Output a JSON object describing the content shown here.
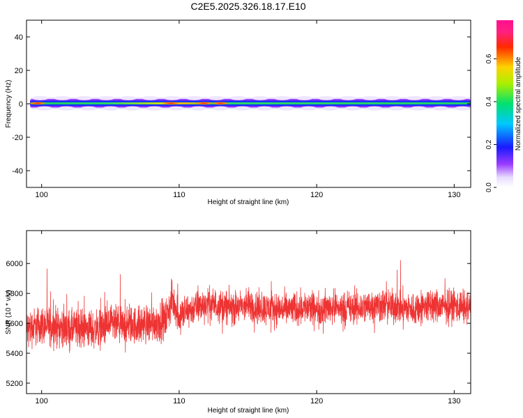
{
  "figure_title": "C2E5.2025.326.18.17.E10",
  "chart_data": [
    {
      "type": "heatmap",
      "title": "",
      "xlabel": "Height of straight line (km)",
      "ylabel": "Frequency (Hz)",
      "xlim": [
        98.9,
        131.2
      ],
      "ylim": [
        -50,
        50
      ],
      "xticks": [
        100,
        110,
        120,
        130
      ],
      "yticks": [
        -40,
        -20,
        0,
        20,
        40
      ],
      "band": {
        "center_hz": 0.3,
        "half_width_hz": [
          3.5,
          2.5,
          1.5,
          0.6
        ]
      },
      "colorbar": {
        "label": "Normalized spectral amplitude",
        "range": [
          0,
          0.78
        ],
        "ticks": [
          0.0,
          0.2,
          0.4,
          0.6
        ],
        "colormap": "rainbow (white-purple-blue-cyan-green-yellow-red-magenta)"
      },
      "hotspots": [
        {
          "x_km": 99.7,
          "amplitude": 0.68
        },
        {
          "x_km": 109.4,
          "amplitude": 0.66
        },
        {
          "x_km": 111.8,
          "amplitude": 0.7
        },
        {
          "x_km": 113.0,
          "amplitude": 0.65
        }
      ],
      "grid": false
    },
    {
      "type": "line",
      "title": "",
      "xlabel": "Height of straight line (km)",
      "ylabel": "SNR (10 * v/v)",
      "xlim": [
        98.9,
        131.2
      ],
      "ylim": [
        5130,
        6220
      ],
      "xticks": [
        100,
        110,
        120,
        130
      ],
      "yticks": [
        5200,
        5400,
        5600,
        5800,
        6000
      ],
      "series": [
        {
          "color": "#ee3333",
          "x": [
            98.9,
            100,
            101,
            102,
            103,
            104,
            105,
            106,
            107,
            108,
            109,
            109.5,
            110,
            111,
            112,
            113,
            114,
            115,
            116,
            117,
            118,
            119,
            120,
            121,
            122,
            123,
            124,
            125,
            126,
            127,
            128,
            129,
            130,
            131.2
          ],
          "y": [
            5560,
            5590,
            5580,
            5560,
            5570,
            5560,
            5590,
            5580,
            5590,
            5600,
            5620,
            5760,
            5650,
            5700,
            5730,
            5720,
            5700,
            5720,
            5700,
            5700,
            5690,
            5710,
            5690,
            5710,
            5700,
            5700,
            5720,
            5720,
            5710,
            5690,
            5720,
            5710,
            5720,
            5700
          ],
          "noise_halfwidth": [
            150,
            150,
            150,
            150,
            150,
            150,
            150,
            150,
            150,
            150,
            150,
            150,
            140,
            130,
            130,
            130,
            130,
            130,
            130,
            130,
            130,
            130,
            130,
            130,
            130,
            130,
            130,
            130,
            130,
            130,
            130,
            130,
            130,
            130
          ]
        }
      ],
      "grid": false
    }
  ]
}
